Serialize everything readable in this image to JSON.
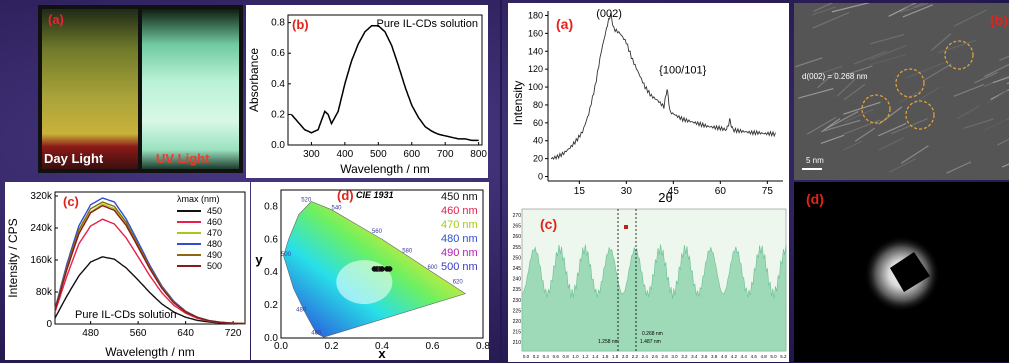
{
  "left_figure": {
    "a": {
      "label": "(a)",
      "captions": [
        "Day Light",
        "UV Light"
      ]
    },
    "b": {
      "label": "(b)",
      "legend": "Pure IL-CDs solution",
      "xlabel": "Wavelength / nm",
      "ylabel": "Absorbance",
      "xticks": [
        "300",
        "400",
        "500",
        "600",
        "700",
        "800"
      ],
      "yticks": [
        "0.0",
        "0.2",
        "0.4",
        "0.6",
        "0.8"
      ]
    },
    "c": {
      "label": "(c)",
      "legend_title": "λmax (nm)",
      "caption": "Pure IL-CDs solution",
      "xlabel": "Wavelength / nm",
      "ylabel": "Intensity / CPS",
      "xticks": [
        "480",
        "560",
        "640",
        "720"
      ],
      "yticks": [
        "0",
        "80k",
        "160k",
        "240k",
        "320k"
      ]
    },
    "d": {
      "label": "(d)",
      "title": "CIE 1931",
      "xlabel": "x",
      "ylabel": "y",
      "xticks": [
        "0.0",
        "0.2",
        "0.4",
        "0.6",
        "0.8"
      ],
      "yticks": [
        "0.0",
        "0.2",
        "0.4",
        "0.6",
        "0.8"
      ],
      "wavelengths": [
        "520",
        "540",
        "560",
        "580",
        "600",
        "620",
        "500",
        "480",
        "460"
      ],
      "legend": [
        {
          "text": "450 nm",
          "color": "#111111"
        },
        {
          "text": "460 nm",
          "color": "#e8204a"
        },
        {
          "text": "470 nm",
          "color": "#a6c81a"
        },
        {
          "text": "480 nm",
          "color": "#2f4fd0"
        },
        {
          "text": "490 nm",
          "color": "#b020b0"
        },
        {
          "text": "500 nm",
          "color": "#3a3ac8"
        }
      ]
    }
  },
  "right_figure": {
    "a": {
      "label": "(a)",
      "xlabel": "2θ",
      "ylabel": "Intensity",
      "peaks": [
        "(002)",
        "{100/101}"
      ],
      "xticks": [
        "15",
        "30",
        "45",
        "60",
        "75"
      ],
      "yticks": [
        "0",
        "20",
        "40",
        "60",
        "80",
        "100",
        "120",
        "140",
        "160",
        "180"
      ]
    },
    "b": {
      "label": "(b)",
      "d_spacing": "d(002) = 0.268 nm",
      "scale": "5 nm"
    },
    "c": {
      "label": "(c)",
      "annot": [
        "0.268 nm",
        "1.258 nm",
        "1.487 nm"
      ],
      "yticks": [
        "270",
        "265",
        "260",
        "255",
        "250",
        "245",
        "240",
        "235",
        "230",
        "225",
        "220",
        "215",
        "210"
      ],
      "xticks": [
        "0.0",
        "0.2",
        "0.4",
        "0.6",
        "0.8",
        "1.0",
        "1.2",
        "1.4",
        "1.6",
        "1.8",
        "2.0",
        "2.2",
        "2.4",
        "2.6",
        "2.8",
        "3.0",
        "3.2",
        "3.4",
        "3.6",
        "3.8",
        "4.0",
        "4.2",
        "4.4",
        "4.6",
        "4.8",
        "5.0",
        "5.2"
      ]
    },
    "d": {
      "label": "(d)"
    }
  },
  "chart_data": [
    {
      "type": "line",
      "title": "",
      "xlabel": "Wavelength / nm",
      "ylabel": "Absorbance",
      "xlim": [
        230,
        810
      ],
      "ylim": [
        0,
        0.85
      ],
      "series": [
        {
          "name": "Pure IL-CDs solution",
          "x": [
            240,
            280,
            300,
            320,
            340,
            350,
            360,
            380,
            400,
            420,
            440,
            460,
            480,
            500,
            520,
            540,
            560,
            580,
            600,
            620,
            640,
            660,
            680,
            700,
            720,
            740,
            760,
            780,
            800
          ],
          "y": [
            0.2,
            0.1,
            0.08,
            0.1,
            0.22,
            0.2,
            0.14,
            0.22,
            0.4,
            0.55,
            0.66,
            0.74,
            0.78,
            0.78,
            0.74,
            0.65,
            0.52,
            0.38,
            0.26,
            0.18,
            0.12,
            0.09,
            0.07,
            0.06,
            0.05,
            0.04,
            0.04,
            0.03,
            0.03
          ]
        }
      ]
    },
    {
      "type": "line",
      "title": "",
      "xlabel": "Wavelength / nm",
      "ylabel": "Intensity / CPS",
      "xlim": [
        420,
        740
      ],
      "ylim": [
        0,
        330000
      ],
      "x": [
        420,
        440,
        460,
        480,
        500,
        520,
        540,
        560,
        580,
        600,
        620,
        640,
        660,
        680,
        700,
        720,
        740
      ],
      "series": [
        {
          "name": "450",
          "values": [
            15000,
            70000,
            120000,
            155000,
            168000,
            162000,
            140000,
            110000,
            78000,
            50000,
            30000,
            17000,
            9000,
            5000,
            2500,
            1200,
            600
          ]
        },
        {
          "name": "460",
          "values": [
            30000,
            120000,
            200000,
            245000,
            262000,
            250000,
            215000,
            168000,
            120000,
            78000,
            47000,
            27000,
            14000,
            7000,
            3500,
            1700,
            800
          ]
        },
        {
          "name": "470",
          "values": [
            35000,
            140000,
            230000,
            280000,
            300000,
            288000,
            248000,
            194000,
            138000,
            90000,
            54000,
            30000,
            16000,
            8000,
            4000,
            2000,
            900
          ]
        },
        {
          "name": "480",
          "values": [
            38000,
            150000,
            245000,
            298000,
            315000,
            305000,
            262000,
            205000,
            146000,
            95000,
            57000,
            32000,
            17000,
            8500,
            4200,
            2100,
            1000
          ]
        },
        {
          "name": "490",
          "values": [
            36000,
            143000,
            235000,
            288000,
            305000,
            294000,
            254000,
            198000,
            141000,
            92000,
            55000,
            31000,
            16500,
            8200,
            4100,
            2000,
            950
          ]
        },
        {
          "name": "500",
          "values": [
            34000,
            136000,
            225000,
            278000,
            296000,
            284000,
            246000,
            192000,
            137000,
            89000,
            53000,
            30000,
            16000,
            8000,
            4000,
            1950,
            900
          ]
        }
      ]
    },
    {
      "type": "scatter",
      "title": "CIE 1931",
      "xlabel": "x",
      "ylabel": "y",
      "xlim": [
        0,
        0.8
      ],
      "ylim": [
        0,
        0.9
      ],
      "series": [
        {
          "name": "450 nm",
          "x": [
            0.37
          ],
          "y": [
            0.42
          ]
        },
        {
          "name": "460 nm",
          "x": [
            0.38
          ],
          "y": [
            0.42
          ]
        },
        {
          "name": "470 nm",
          "x": [
            0.39
          ],
          "y": [
            0.42
          ]
        },
        {
          "name": "480 nm",
          "x": [
            0.4
          ],
          "y": [
            0.42
          ]
        },
        {
          "name": "490 nm",
          "x": [
            0.42
          ],
          "y": [
            0.42
          ]
        },
        {
          "name": "500 nm",
          "x": [
            0.43
          ],
          "y": [
            0.42
          ]
        }
      ]
    },
    {
      "type": "line",
      "title": "",
      "xlabel": "2θ",
      "ylabel": "Intensity",
      "xlim": [
        5,
        80
      ],
      "ylim": [
        -5,
        185
      ],
      "series": [
        {
          "name": "",
          "x": [
            6,
            8,
            10,
            12,
            14,
            16,
            18,
            20,
            22,
            24,
            25,
            26,
            28,
            30,
            32,
            34,
            36,
            38,
            40,
            42,
            43,
            44,
            46,
            48,
            50,
            52,
            54,
            56,
            58,
            60,
            62,
            63,
            64,
            66,
            68,
            70,
            72,
            74,
            76,
            78
          ],
          "y": [
            20,
            22,
            26,
            32,
            40,
            50,
            70,
            100,
            140,
            170,
            182,
            165,
            160,
            150,
            130,
            115,
            100,
            90,
            85,
            78,
            98,
            72,
            68,
            64,
            62,
            60,
            58,
            56,
            55,
            54,
            52,
            63,
            52,
            51,
            50,
            49,
            49,
            48,
            48,
            47
          ]
        }
      ]
    }
  ]
}
